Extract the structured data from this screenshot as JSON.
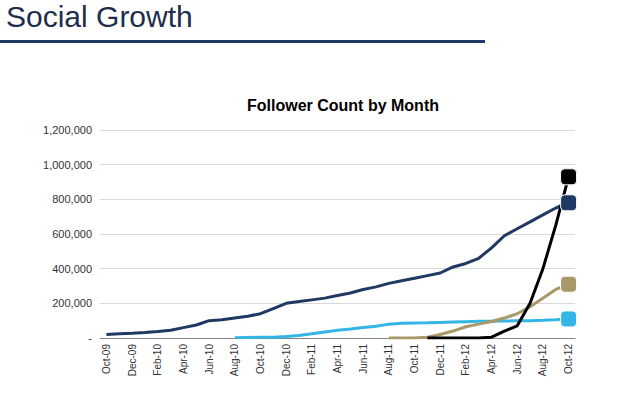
{
  "slide_title": "Social Growth",
  "chart_data": {
    "type": "line",
    "title": "Follower Count by Month",
    "categories": [
      "Oct-09",
      null,
      "Dec-09",
      null,
      "Feb-10",
      null,
      "Apr-10",
      null,
      "Jun-10",
      null,
      "Aug-10",
      null,
      "Oct-10",
      null,
      "Dec-10",
      null,
      "Feb-11",
      null,
      "Apr-11",
      null,
      "Jun-11",
      null,
      "Aug-11",
      null,
      "Oct-11",
      null,
      "Dec-11",
      null,
      "Feb-12",
      null,
      "Apr-12",
      null,
      "Jun-12",
      null,
      "Aug-12",
      null,
      "Oct-12"
    ],
    "series": [
      {
        "color": "#1f3864",
        "values": [
          20000,
          25000,
          28000,
          32000,
          38000,
          45000,
          60000,
          75000,
          100000,
          105000,
          115000,
          125000,
          140000,
          170000,
          200000,
          210000,
          220000,
          230000,
          245000,
          260000,
          280000,
          295000,
          315000,
          330000,
          345000,
          360000,
          375000,
          410000,
          430000,
          460000,
          520000,
          590000,
          630000,
          670000,
          710000,
          750000,
          780000
        ]
      },
      {
        "color": "#33b5e5",
        "values": [
          null,
          null,
          null,
          null,
          null,
          null,
          null,
          null,
          null,
          null,
          2000,
          3000,
          4000,
          5000,
          8000,
          15000,
          25000,
          35000,
          45000,
          52000,
          60000,
          68000,
          80000,
          85000,
          87000,
          88000,
          90000,
          92000,
          94000,
          96000,
          97000,
          98000,
          99000,
          100000,
          102000,
          105000,
          110000
        ]
      },
      {
        "color": "#a89968",
        "values": [
          null,
          null,
          null,
          null,
          null,
          null,
          null,
          null,
          null,
          null,
          null,
          null,
          null,
          null,
          null,
          null,
          null,
          null,
          null,
          null,
          null,
          null,
          0,
          0,
          0,
          5000,
          20000,
          40000,
          65000,
          80000,
          95000,
          115000,
          140000,
          180000,
          230000,
          280000,
          310000
        ]
      },
      {
        "color": "#000000",
        "values": [
          null,
          null,
          null,
          null,
          null,
          null,
          null,
          null,
          null,
          null,
          null,
          null,
          null,
          null,
          null,
          null,
          null,
          null,
          null,
          null,
          null,
          null,
          null,
          null,
          null,
          0,
          0,
          0,
          0,
          0,
          5000,
          40000,
          70000,
          200000,
          400000,
          650000,
          930000
        ]
      }
    ],
    "ylim": [
      0,
      1200000
    ],
    "yticks": [
      {
        "value": 0,
        "label": "-"
      },
      {
        "value": 200000,
        "label": "200,000"
      },
      {
        "value": 400000,
        "label": "400,000"
      },
      {
        "value": 600000,
        "label": "600,000"
      },
      {
        "value": 800000,
        "label": "800,000"
      },
      {
        "value": 1000000,
        "label": "1,000,000"
      },
      {
        "value": 1200000,
        "label": "1,200,000"
      }
    ],
    "grid": true
  }
}
